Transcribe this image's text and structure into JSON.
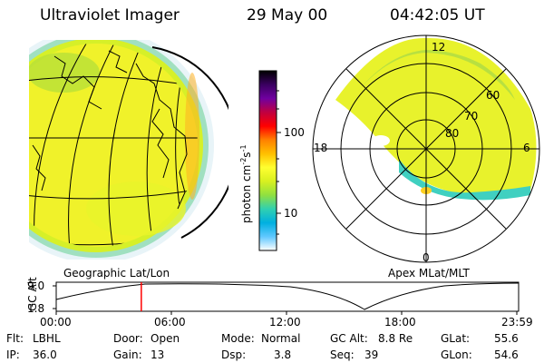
{
  "header": {
    "title": "Ultraviolet Imager",
    "date": "29 May 00",
    "time": "04:42:05 UT"
  },
  "colorbar": {
    "unit_label": "photon cm",
    "unit_sup1": "-2",
    "unit_mid": "s",
    "unit_sup2": "-1",
    "ticks": [
      "100",
      "10"
    ],
    "colors": [
      "#000000",
      "#3a0060",
      "#7000a0",
      "#c00040",
      "#ff0000",
      "#ff8000",
      "#ffc000",
      "#ffff30",
      "#d8f020",
      "#90e040",
      "#30d0b0",
      "#00b0e0",
      "#60c8ff",
      "#ffffff"
    ]
  },
  "polar_labels": {
    "mlt_12": "12",
    "mlt_18": "18",
    "mlt_6": "6",
    "mlt_0": "0",
    "lat_60": "60",
    "lat_70": "70",
    "lat_80": "80"
  },
  "panels": {
    "left_caption": "Geographic Lat/Lon",
    "right_caption": "Apex MLat/MLT"
  },
  "altitude_strip": {
    "ylabel": "GC Alt",
    "y_ticks": [
      "9.0",
      "1.8"
    ],
    "x_ticks": [
      "00:00",
      "06:00",
      "12:00",
      "18:00",
      "23:59"
    ],
    "cursor_fraction": 0.184
  },
  "status": {
    "flt_label": "Flt:",
    "flt_value": "LBHL",
    "ip_label": "IP:",
    "ip_value": "36.0",
    "door_label": "Door:",
    "door_value": "Open",
    "gain_label": "Gain:",
    "gain_value": "13",
    "mode_label": "Mode:",
    "mode_value": "Normal",
    "dsp_label": "Dsp:",
    "dsp_value": "3.8",
    "gcalt_label": "GC Alt:",
    "gcalt_value": "8.8 Re",
    "seq_label": "Seq:",
    "seq_value": "39",
    "glat_label": "GLat:",
    "glat_value": "55.6",
    "glon_label": "GLon:",
    "glon_value": "54.6"
  }
}
